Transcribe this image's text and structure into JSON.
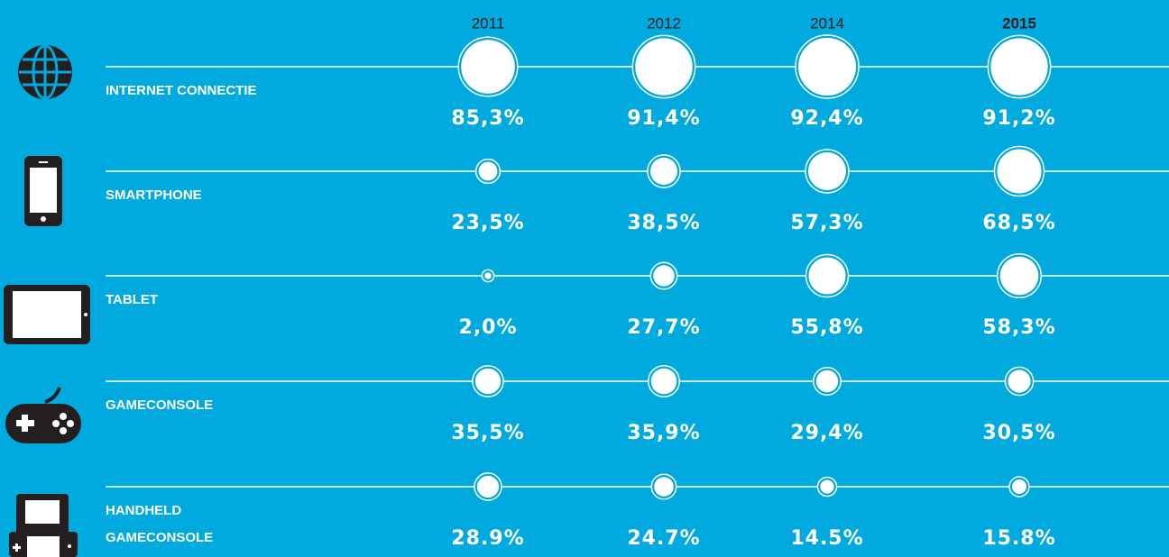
{
  "chart_data": {
    "type": "bubble_grid",
    "categories": [
      "2011",
      "2012",
      "2014",
      "2015"
    ],
    "highlight": "2015",
    "background": "#00a9de",
    "color": "#ffffff",
    "series": [
      {
        "name": "INTERNET CONNECTIE",
        "values": [
          85.3,
          91.4,
          92.4,
          91.2
        ],
        "value_labels": [
          "85,3%",
          "91,4%",
          "92,4%",
          "91,2%"
        ]
      },
      {
        "name": "SMARTPHONE",
        "values": [
          23.5,
          38.5,
          57.3,
          68.5
        ],
        "value_labels": [
          "23,5%",
          "38,5%",
          "57,3%",
          "68,5%"
        ]
      },
      {
        "name": "TABLET",
        "values": [
          2.0,
          27.7,
          55.8,
          58.3
        ],
        "value_labels": [
          "2,0%",
          "27,7%",
          "55,8%",
          "58,3%"
        ]
      },
      {
        "name": "GAMECONSOLE",
        "values": [
          35.5,
          35.9,
          29.4,
          30.5
        ],
        "value_labels": [
          "35,5%",
          "35,9%",
          "29,4%",
          "30,5%"
        ]
      },
      {
        "name": "HANDHELD\nGAMECONSOLE",
        "values": [
          28.9,
          24.7,
          14.5,
          15.8
        ],
        "value_labels": [
          "28.9%",
          "24.7%",
          "14.5%",
          "15.8%"
        ]
      }
    ]
  }
}
